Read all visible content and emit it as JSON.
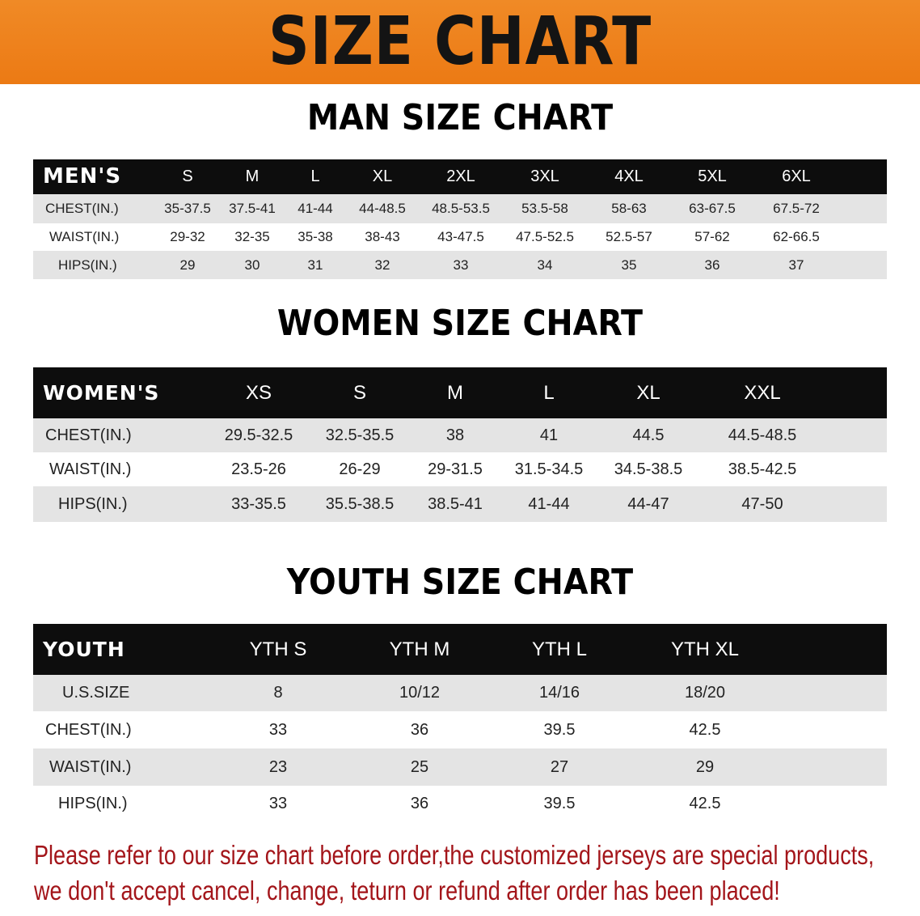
{
  "banner": {
    "title": "SIZE CHART",
    "color": "#EF8220"
  },
  "men": {
    "title": "MAN SIZE CHART",
    "corner": "MEN'S",
    "columns": [
      "S",
      "M",
      "L",
      "XL",
      "2XL",
      "3XL",
      "4XL",
      "5XL",
      "6XL"
    ],
    "rows": [
      {
        "label": "CHEST(IN.)",
        "values": [
          "35-37.5",
          "37.5-41",
          "41-44",
          "44-48.5",
          "48.5-53.5",
          "53.5-58",
          "58-63",
          "63-67.5",
          "67.5-72"
        ]
      },
      {
        "label": "WAIST(IN.)",
        "values": [
          "29-32",
          "32-35",
          "35-38",
          "38-43",
          "43-47.5",
          "47.5-52.5",
          "52.5-57",
          "57-62",
          "62-66.5"
        ]
      },
      {
        "label": "HIPS(IN.)",
        "values": [
          "29",
          "30",
          "31",
          "32",
          "33",
          "34",
          "35",
          "36",
          "37"
        ]
      }
    ]
  },
  "women": {
    "title": "WOMEN SIZE CHART",
    "corner": "WOMEN'S",
    "columns": [
      "XS",
      "S",
      "M",
      "L",
      "XL",
      "XXL"
    ],
    "rows": [
      {
        "label": "CHEST(IN.)",
        "values": [
          "29.5-32.5",
          "32.5-35.5",
          "38",
          "41",
          "44.5",
          "44.5-48.5"
        ]
      },
      {
        "label": "WAIST(IN.)",
        "values": [
          "23.5-26",
          "26-29",
          "29-31.5",
          "31.5-34.5",
          "34.5-38.5",
          "38.5-42.5"
        ]
      },
      {
        "label": "HIPS(IN.)",
        "values": [
          "33-35.5",
          "35.5-38.5",
          "38.5-41",
          "41-44",
          "44-47",
          "47-50"
        ]
      }
    ]
  },
  "youth": {
    "title": "YOUTH SIZE CHART",
    "corner": "YOUTH",
    "columns": [
      "YTH S",
      "YTH M",
      "YTH L",
      "YTH XL"
    ],
    "rows": [
      {
        "label": "U.S.SIZE",
        "values": [
          "8",
          "10/12",
          "14/16",
          "18/20"
        ]
      },
      {
        "label": "CHEST(IN.)",
        "values": [
          "33",
          "36",
          "39.5",
          "42.5"
        ]
      },
      {
        "label": "WAIST(IN.)",
        "values": [
          "23",
          "25",
          "27",
          "29"
        ]
      },
      {
        "label": "HIPS(IN.)",
        "values": [
          "33",
          "36",
          "39.5",
          "42.5"
        ]
      }
    ]
  },
  "notice": {
    "line1": "Please refer to our size chart before order,the customized jerseys are special products,",
    "line2": "we don't accept cancel, change, teturn or refund after order has been placed!",
    "color": "#A3151A"
  }
}
